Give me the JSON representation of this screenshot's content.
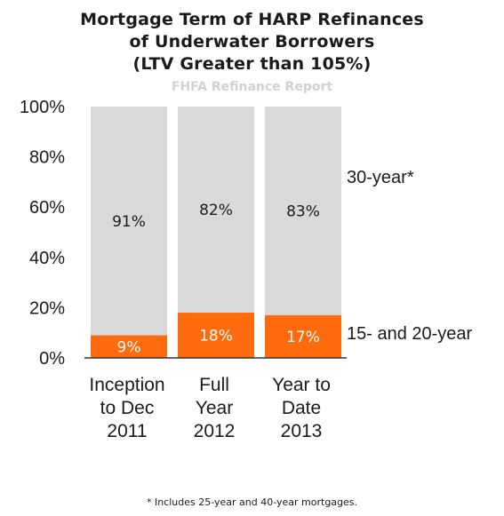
{
  "title_lines": [
    "Mortgage Term of HARP Refinances",
    "of Underwater Borrowers",
    "(LTV Greater than 105%)"
  ],
  "source_watermark": "FHFA Refinance Report",
  "footnote": "* Includes 25-year and 40-year mortgages.",
  "colors": {
    "top_segment": "#d9d9d9",
    "bottom_segment": "#ff6a0d",
    "text": "#1a1a1a",
    "axis_line": "#333333"
  },
  "chart_data": {
    "type": "bar",
    "stacked": true,
    "percent": true,
    "categories": [
      [
        "Inception",
        "to Dec",
        "2011"
      ],
      [
        "Full",
        "Year",
        "2012"
      ],
      [
        "Year to",
        "Date",
        "2013"
      ]
    ],
    "series": [
      {
        "name": "15- and 20-year",
        "values": [
          9,
          18,
          17
        ],
        "labels": [
          "9%",
          "18%",
          "17%"
        ]
      },
      {
        "name": "30-year*",
        "values": [
          91,
          82,
          83
        ],
        "labels": [
          "91%",
          "82%",
          "83%"
        ]
      }
    ],
    "yticks": [
      "0%",
      "20%",
      "40%",
      "60%",
      "80%",
      "100%"
    ],
    "ylim": [
      0,
      100
    ],
    "grid": false,
    "legend": "right"
  }
}
